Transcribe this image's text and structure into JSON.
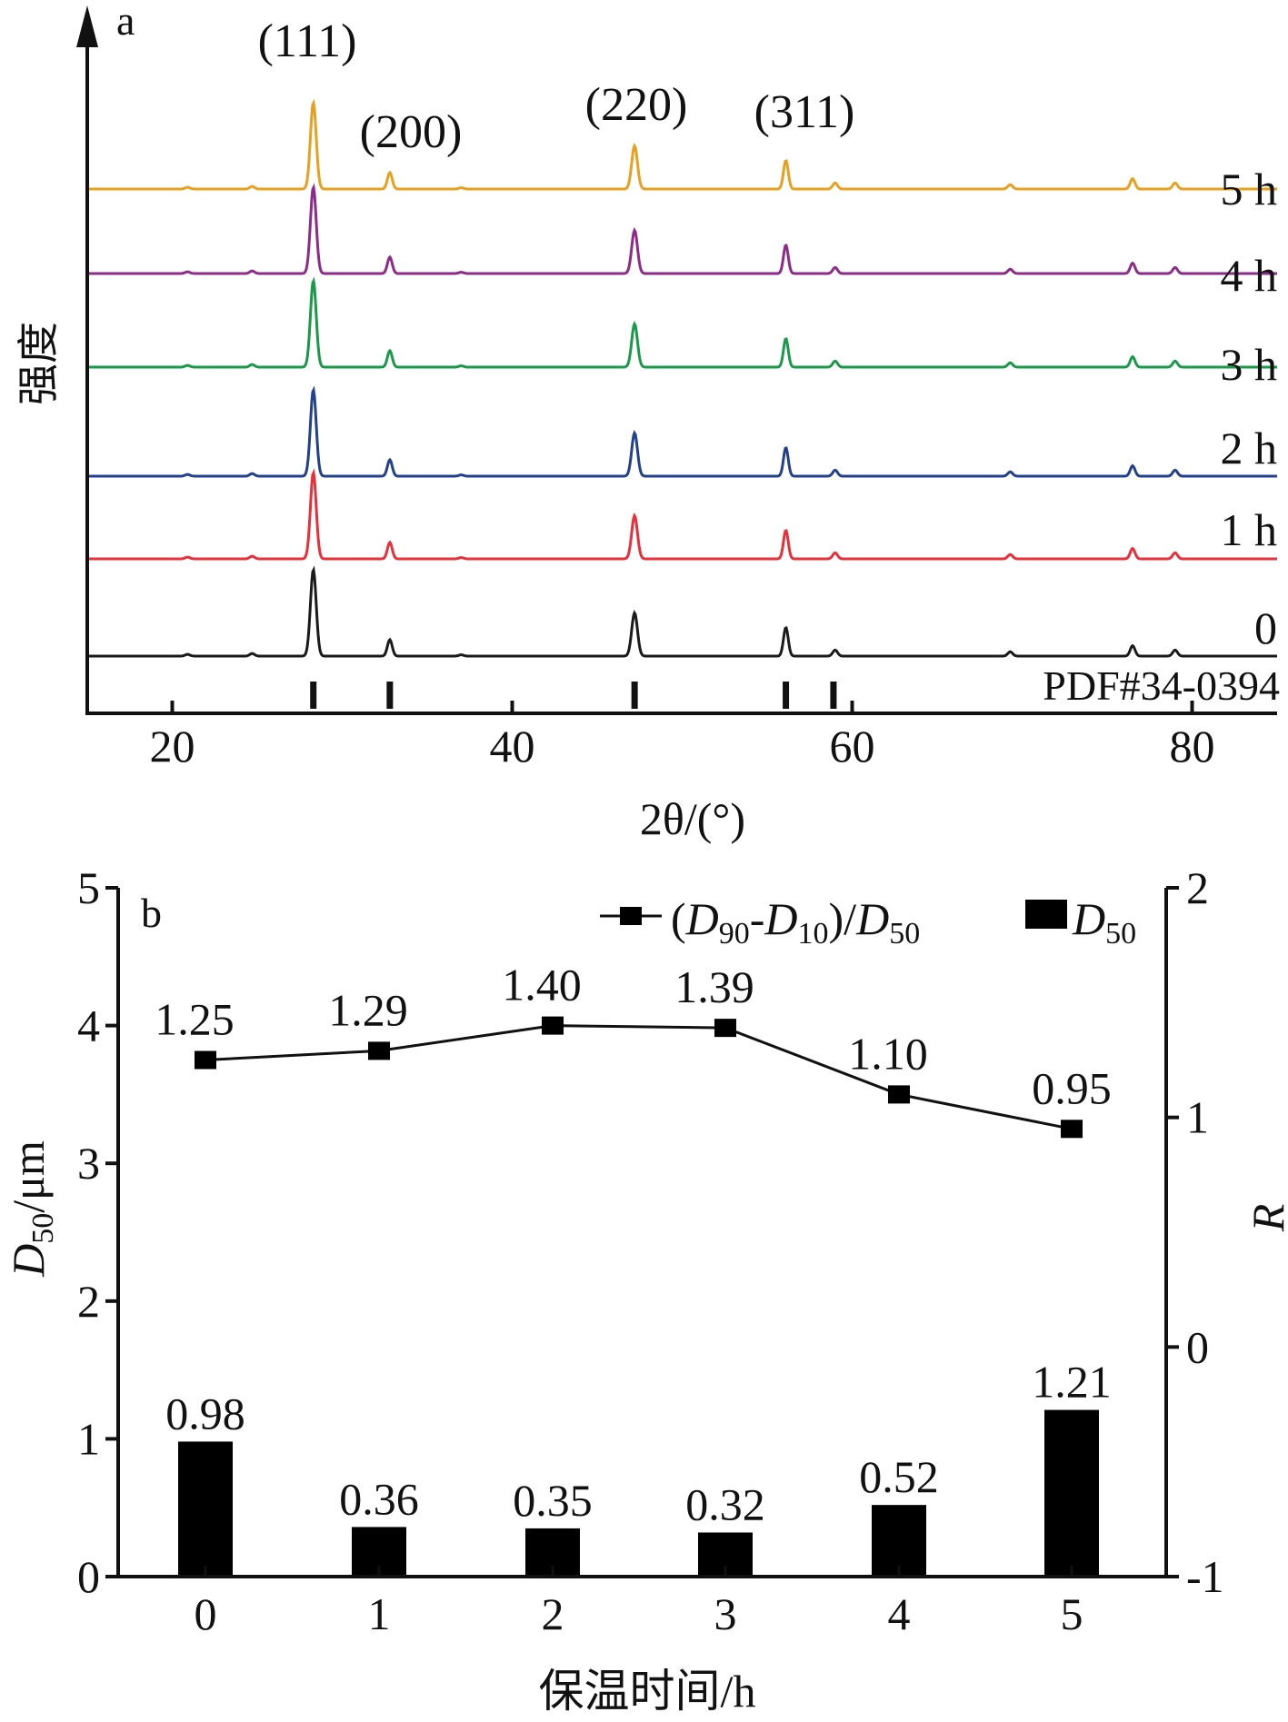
{
  "chart_data": [
    {
      "type": "line",
      "panel_label": "a",
      "xlabel": "2θ/(°)",
      "ylabel": "强度",
      "xlim": [
        15,
        85
      ],
      "xticks": [
        20,
        40,
        60,
        80
      ],
      "reference_label": "PDF#34-0394",
      "reference_peaks": [
        28.3,
        32.8,
        47.2,
        56.1,
        58.9
      ],
      "peak_labels": [
        {
          "text": "(111)",
          "x": 28.3
        },
        {
          "text": "(200)",
          "x": 32.8
        },
        {
          "text": "(220)",
          "x": 47.2
        },
        {
          "text": "(311)",
          "x": 56.1
        }
      ],
      "peaks": [
        {
          "x": 20.9,
          "h": 0.02
        },
        {
          "x": 24.7,
          "h": 0.03
        },
        {
          "x": 28.3,
          "h": 1.0
        },
        {
          "x": 32.8,
          "h": 0.19
        },
        {
          "x": 37.0,
          "h": 0.015
        },
        {
          "x": 47.2,
          "h": 0.5
        },
        {
          "x": 56.1,
          "h": 0.33
        },
        {
          "x": 59.0,
          "h": 0.07
        },
        {
          "x": 69.3,
          "h": 0.05
        },
        {
          "x": 76.5,
          "h": 0.12
        },
        {
          "x": 79.0,
          "h": 0.07
        }
      ],
      "series": [
        {
          "name": "0",
          "color": "#1a1a1a"
        },
        {
          "name": "1 h",
          "color": "#e8303a"
        },
        {
          "name": "2 h",
          "color": "#23408e"
        },
        {
          "name": "3 h",
          "color": "#1a9a48"
        },
        {
          "name": "4 h",
          "color": "#8e2b8a"
        },
        {
          "name": "5 h",
          "color": "#e8a020"
        }
      ]
    },
    {
      "type": "bar",
      "panel_label": "b",
      "xlabel": "保温时间/h",
      "ylabel_left": "D50/μm",
      "ylabel_right": "R",
      "categories": [
        "0",
        "1",
        "2",
        "3",
        "4",
        "5"
      ],
      "ylim_left": [
        0,
        5
      ],
      "yticks_left": [
        "0",
        "1",
        "2",
        "3",
        "4",
        "5"
      ],
      "ylim_right": [
        -1,
        2
      ],
      "yticks_right": [
        "-1",
        "0",
        "1",
        "2"
      ],
      "series": [
        {
          "name": "D50",
          "kind": "bar",
          "axis": "left",
          "values": [
            0.98,
            0.36,
            0.35,
            0.32,
            0.52,
            1.21
          ],
          "labels": [
            "0.98",
            "0.36",
            "0.35",
            "0.32",
            "0.52",
            "1.21"
          ]
        },
        {
          "name": "(D90-D10)/D50",
          "kind": "line",
          "axis": "right",
          "values": [
            1.25,
            1.29,
            1.4,
            1.39,
            1.1,
            0.95
          ],
          "labels": [
            "1.25",
            "1.29",
            "1.40",
            "1.39",
            "1.10",
            "0.95"
          ]
        }
      ]
    }
  ]
}
